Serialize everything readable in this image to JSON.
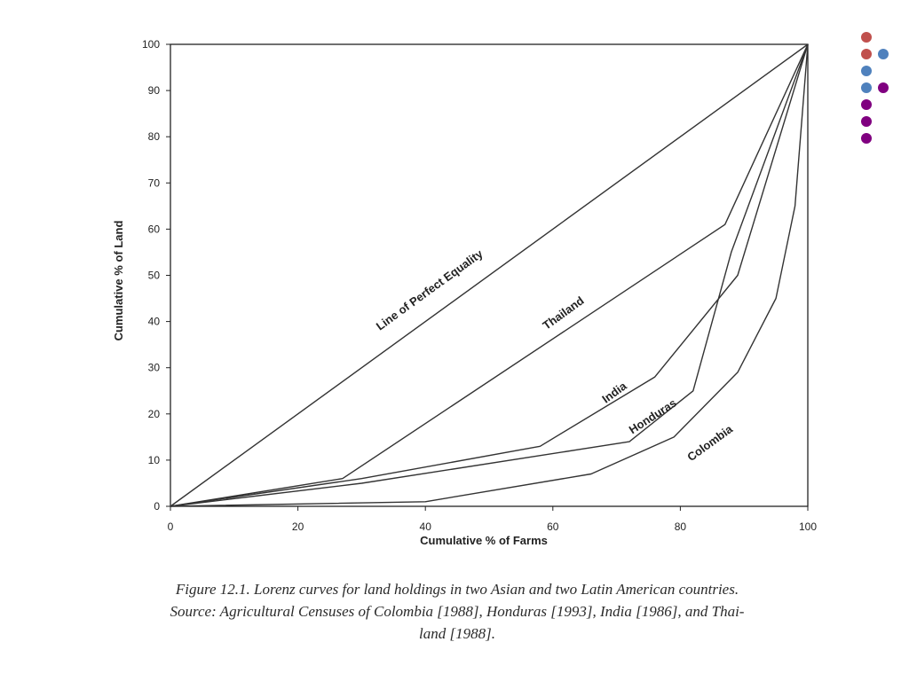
{
  "decor": {
    "dots": [
      {
        "color": "#c0504d"
      },
      {
        "color": "#c0504d"
      },
      {
        "color": "#4f81bd"
      },
      {
        "color": "#4f81bd"
      },
      {
        "color": "#4f81bd"
      },
      {
        "color": "#800080"
      },
      {
        "color": "#800080"
      },
      {
        "color": "#800080"
      },
      {
        "color": "#800080"
      },
      {
        "color": "#800080"
      }
    ]
  },
  "caption": {
    "line1": "Figure 12.1. Lorenz curves for land holdings in two Asian and two Latin American countries.",
    "line2": "Source: Agricultural Censuses of Colombia [1988], Honduras [1993], India [1986], and Thai-",
    "line3": "land [1988]."
  },
  "chart_data": {
    "type": "line",
    "xlabel": "Cumulative % of Farms",
    "ylabel": "Cumulative % of Land",
    "xlim": [
      0,
      100
    ],
    "ylim": [
      0,
      100
    ],
    "xticks": [
      0,
      20,
      40,
      60,
      80,
      100
    ],
    "yticks": [
      0,
      10,
      20,
      30,
      40,
      50,
      60,
      70,
      80,
      90,
      100
    ],
    "grid": false,
    "legend": "none (series labeled inline)",
    "series": [
      {
        "name": "Line of Perfect Equality",
        "points": [
          [
            0,
            0
          ],
          [
            100,
            100
          ]
        ]
      },
      {
        "name": "Thailand",
        "points": [
          [
            0,
            0
          ],
          [
            27,
            6
          ],
          [
            87,
            61
          ],
          [
            90,
            70
          ],
          [
            100,
            100
          ]
        ]
      },
      {
        "name": "India",
        "points": [
          [
            0,
            0
          ],
          [
            30,
            6
          ],
          [
            58,
            13
          ],
          [
            76,
            28
          ],
          [
            89,
            50
          ],
          [
            100,
            100
          ]
        ]
      },
      {
        "name": "Honduras",
        "points": [
          [
            0,
            0
          ],
          [
            30,
            5
          ],
          [
            72,
            14
          ],
          [
            82,
            25
          ],
          [
            88,
            55
          ],
          [
            100,
            100
          ]
        ]
      },
      {
        "name": "Colombia",
        "points": [
          [
            0,
            0
          ],
          [
            40,
            1
          ],
          [
            66,
            7
          ],
          [
            79,
            15
          ],
          [
            89,
            29
          ],
          [
            95,
            45
          ],
          [
            98,
            65
          ],
          [
            100,
            100
          ]
        ]
      }
    ],
    "colors": {
      "line": "#333333",
      "frame": "#222222"
    }
  }
}
